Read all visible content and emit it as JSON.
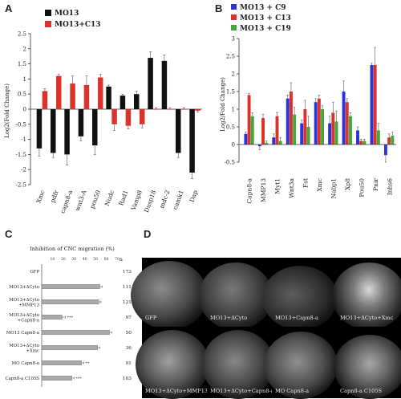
{
  "panels": {
    "a": "A",
    "b": "B",
    "c": "C",
    "d": "D"
  },
  "chart_a": {
    "type": "bar",
    "ylabel": "Log2(Fold Change)",
    "ylim": [
      -2.5,
      2.5
    ],
    "yticks": [
      "2.5",
      "2",
      "1.5",
      "1",
      "0.5",
      "0",
      "-0.5",
      "-1",
      "-1.5",
      "-2",
      "-2.5"
    ],
    "categories": [
      "Xmc",
      "pdfr",
      "capn8-a",
      "wnt3-A",
      "pou50",
      "Nudc",
      "Rad1",
      "Vamp8",
      "Dusp18",
      "mdc-2",
      "camk1",
      "Dap"
    ],
    "series": [
      {
        "name": "MO13+C13",
        "color": "#d9342b",
        "values": [
          0.6,
          1.1,
          0.85,
          0.8,
          1.05,
          -0.5,
          -0.55,
          -0.5,
          0.0,
          0.0,
          0.0,
          -0.05
        ],
        "errors": [
          0.08,
          0.05,
          0.25,
          0.3,
          0.1,
          0.2,
          0.1,
          0.12,
          0.05,
          0.05,
          0.05,
          0.05
        ]
      },
      {
        "name": "MO13",
        "color": "#111111",
        "values": [
          -1.3,
          -1.45,
          -1.5,
          -0.9,
          -1.2,
          0.75,
          0.45,
          0.5,
          1.7,
          1.6,
          -1.45,
          -2.1
        ],
        "errors": [
          0.25,
          0.15,
          0.35,
          0.15,
          0.3,
          0.05,
          0.05,
          0.1,
          0.2,
          0.2,
          0.15,
          0.2
        ]
      }
    ]
  },
  "chart_b": {
    "type": "bar",
    "ylabel": "Log2/Fold Change)",
    "ylim": [
      -0.5,
      3
    ],
    "yticks": [
      "3",
      "2.5",
      "2",
      "1.5",
      "1",
      "0.5",
      "0",
      "-0.5"
    ],
    "categories": [
      "Capn8-a",
      "MMP13",
      "Myt1",
      "Wnt3a",
      "Fst",
      "Xmc",
      "Nabp1",
      "Xp8",
      "Pou50",
      "Pnir",
      "Inhs6"
    ],
    "series": [
      {
        "name": "MO13 + C9",
        "color": "#2b33d6",
        "values": [
          0.3,
          -0.05,
          0.2,
          1.3,
          0.6,
          1.2,
          0.6,
          1.5,
          0.4,
          2.25,
          -0.3
        ],
        "errors": [
          0.05,
          0.1,
          0.1,
          0.1,
          0.1,
          0.1,
          0.2,
          0.3,
          0.1,
          0.05,
          0.2
        ]
      },
      {
        "name": "MO13 + C13",
        "color": "#d9342b",
        "values": [
          1.4,
          0.75,
          0.8,
          1.5,
          1.0,
          1.3,
          0.9,
          1.2,
          0.1,
          2.25,
          0.2
        ],
        "errors": [
          0.05,
          0.1,
          0.1,
          0.25,
          0.25,
          0.1,
          0.3,
          0.1,
          0.05,
          0.5,
          0.1
        ]
      },
      {
        "name": "MO13 + C19",
        "color": "#41a73a",
        "values": [
          0.8,
          0.05,
          0.1,
          0.85,
          0.5,
          1.0,
          0.65,
          0.8,
          0.1,
          0.4,
          0.25
        ],
        "errors": [
          0.1,
          0.05,
          0.1,
          0.2,
          0.3,
          0.1,
          0.3,
          0.1,
          0.05,
          0.2,
          0.1
        ]
      }
    ]
  },
  "chart_c": {
    "type": "bar",
    "title": "Inhibition of CNC migration (%)",
    "n_header": "n",
    "xticks": [
      "10",
      "20",
      "30",
      "40",
      "50",
      "60",
      "70"
    ],
    "xlim": [
      0,
      70
    ],
    "rows": [
      {
        "label": [
          "GFP"
        ],
        "value": 0,
        "error": 0,
        "sig": "",
        "n": "173"
      },
      {
        "label": [
          "MO13+ΔCyto"
        ],
        "value": 54,
        "error": 2,
        "sig": "",
        "n": "111"
      },
      {
        "label": [
          "MO13+ΔCyto",
          "+MMP13"
        ],
        "value": 53,
        "error": 2,
        "sig": "",
        "n": "121"
      },
      {
        "label": [
          "MO13+ΔCyto",
          "+Capn8-a"
        ],
        "value": 19,
        "error": 3,
        "sig": "***",
        "n": "97"
      },
      {
        "label": [
          "MO13 Capn8-a"
        ],
        "value": 63,
        "error": 2,
        "sig": "",
        "n": "50"
      },
      {
        "label": [
          "MO13+ΔCyto",
          "+Xmc"
        ],
        "value": 52,
        "error": 2,
        "sig": "",
        "n": "36"
      },
      {
        "label": [
          "MO Capn8-a"
        ],
        "value": 37,
        "error": 2,
        "sig": "**",
        "n": "91"
      },
      {
        "label": [
          "Capn8-a C105S"
        ],
        "value": 28,
        "error": 2,
        "sig": "***",
        "n": "103"
      }
    ]
  },
  "micrographs": [
    {
      "label": "GFP"
    },
    {
      "label": "MO13+ΔCyto"
    },
    {
      "label": "MO13+Capn8-a"
    },
    {
      "label": "MO13+ΔCyto+Xmc"
    },
    {
      "label": "MO13+ΔCyto+MMP13"
    },
    {
      "label": "MO13+ΔCyto+Capn8-a"
    },
    {
      "label": "MO Capn8-a"
    },
    {
      "label": "Capn8-a C105S"
    }
  ]
}
